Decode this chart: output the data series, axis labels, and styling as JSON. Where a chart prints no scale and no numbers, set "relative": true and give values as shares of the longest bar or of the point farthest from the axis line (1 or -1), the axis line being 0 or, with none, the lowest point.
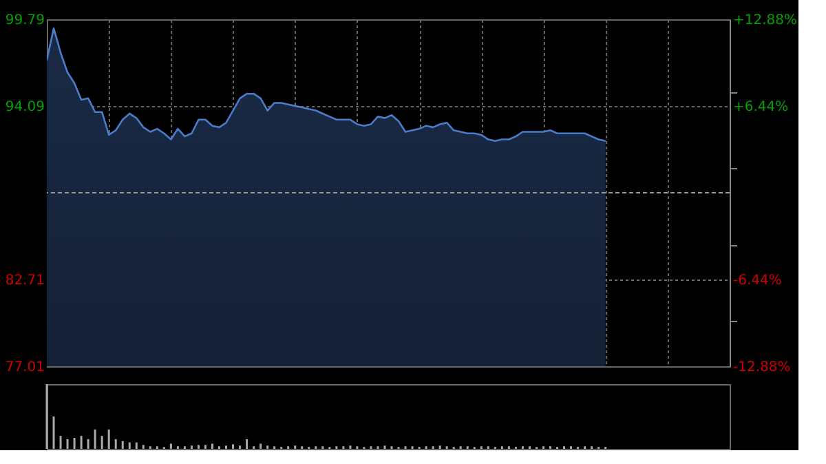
{
  "chart_data": [
    {
      "type": "area",
      "categories": [
        null,
        null,
        null,
        null,
        null,
        null,
        null,
        null,
        null,
        null,
        null,
        null,
        null,
        null,
        null,
        null,
        null,
        null,
        null,
        null,
        null,
        null,
        null,
        null,
        null,
        null,
        null,
        null,
        null,
        null,
        null,
        null,
        null,
        null,
        null,
        null,
        null,
        null,
        null,
        null,
        null,
        null,
        null,
        null,
        null,
        null,
        null,
        null,
        null,
        null,
        null,
        null,
        null,
        null,
        null,
        null,
        null,
        null,
        null,
        null,
        null,
        null,
        null,
        null,
        null,
        null,
        null,
        null,
        null,
        null,
        null,
        null,
        null,
        null,
        null,
        null,
        null,
        null,
        null,
        null,
        null,
        null,
        null,
        null,
        null,
        null,
        null,
        null,
        null,
        null,
        null,
        null,
        null,
        null,
        null,
        null,
        null,
        null,
        null,
        null
      ],
      "series": [
        {
          "color": "#4a7cc8",
          "values": [
            97.1,
            99.2,
            97.6,
            96.3,
            95.6,
            94.5,
            94.6,
            93.7,
            93.7,
            92.2,
            92.5,
            93.2,
            93.6,
            93.3,
            92.7,
            92.4,
            92.6,
            92.3,
            91.9,
            92.6,
            92.1,
            92.3,
            93.2,
            93.2,
            92.8,
            92.7,
            93.0,
            93.8,
            94.6,
            94.9,
            94.9,
            94.6,
            93.8,
            94.3,
            94.3,
            94.2,
            94.1,
            94.0,
            93.9,
            93.8,
            93.6,
            93.4,
            93.2,
            93.2,
            93.2,
            92.9,
            92.8,
            92.9,
            93.4,
            93.3,
            93.5,
            93.1,
            92.4,
            92.5,
            92.6,
            92.8,
            92.7,
            92.9,
            93.0,
            92.5,
            92.4,
            92.3,
            92.3,
            92.2,
            91.9,
            91.8,
            91.9,
            91.9,
            92.1,
            92.4,
            92.4,
            92.4,
            92.4,
            92.5,
            92.3,
            92.3,
            92.3,
            92.3,
            92.3,
            92.1,
            91.9,
            91.8,
            null,
            null,
            null,
            null,
            null,
            null,
            null,
            null,
            null,
            null,
            null,
            null,
            null,
            null,
            null,
            null,
            null,
            null
          ]
        }
      ],
      "ylim": [
        77.01,
        99.79
      ],
      "yticks": [
        77.01,
        82.71,
        94.09,
        99.79
      ],
      "y2lim": [
        -12.88,
        12.88
      ],
      "y2ticks": [
        {
          "value": 12.88,
          "label": "+12.88%"
        },
        {
          "value": 6.44,
          "label": "+6.44%"
        },
        {
          "value": -6.44,
          "label": "-6.44%"
        },
        {
          "value": -12.88,
          "label": "-12.88%"
        }
      ],
      "ref_lines": [
        {
          "axis": "y",
          "value": 88.4,
          "line_style": "dashed"
        }
      ],
      "grid": true,
      "tick_labels": "y"
    },
    {
      "type": "bar",
      "relative": true,
      "categories": [
        null,
        null,
        null,
        null,
        null,
        null,
        null,
        null,
        null,
        null,
        null,
        null,
        null,
        null,
        null,
        null,
        null,
        null,
        null,
        null,
        null,
        null,
        null,
        null,
        null,
        null,
        null,
        null,
        null,
        null,
        null,
        null,
        null,
        null,
        null,
        null,
        null,
        null,
        null,
        null,
        null,
        null,
        null,
        null,
        null,
        null,
        null,
        null,
        null,
        null,
        null,
        null,
        null,
        null,
        null,
        null,
        null,
        null,
        null,
        null,
        null,
        null,
        null,
        null,
        null,
        null,
        null,
        null,
        null,
        null,
        null,
        null,
        null,
        null,
        null,
        null,
        null,
        null,
        null,
        null,
        null,
        null,
        null,
        null,
        null,
        null,
        null,
        null,
        null,
        null,
        null,
        null,
        null,
        null,
        null,
        null,
        null,
        null,
        null,
        null
      ],
      "values": [
        1.0,
        0.5,
        0.2,
        0.15,
        0.17,
        0.2,
        0.15,
        0.3,
        0.2,
        0.3,
        0.15,
        0.12,
        0.1,
        0.1,
        0.06,
        0.04,
        0.04,
        0.03,
        0.08,
        0.04,
        0.04,
        0.05,
        0.06,
        0.06,
        0.08,
        0.04,
        0.05,
        0.07,
        0.05,
        0.15,
        0.04,
        0.08,
        0.05,
        0.04,
        0.03,
        0.04,
        0.05,
        0.04,
        0.03,
        0.04,
        0.04,
        0.03,
        0.04,
        0.04,
        0.05,
        0.04,
        0.03,
        0.04,
        0.04,
        0.05,
        0.04,
        0.03,
        0.04,
        0.04,
        0.03,
        0.04,
        0.04,
        0.05,
        0.04,
        0.03,
        0.04,
        0.04,
        0.03,
        0.04,
        0.04,
        0.03,
        0.04,
        0.04,
        0.03,
        0.04,
        0.04,
        0.03,
        0.04,
        0.04,
        0.03,
        0.04,
        0.04,
        0.03,
        0.04,
        0.04,
        0.03,
        0.03,
        null,
        null,
        null,
        null,
        null,
        null,
        null,
        null,
        null,
        null,
        null,
        null,
        null,
        null,
        null,
        null,
        null,
        null
      ],
      "color": "#aaaaaa",
      "grid": false,
      "tick_labels": false
    }
  ]
}
